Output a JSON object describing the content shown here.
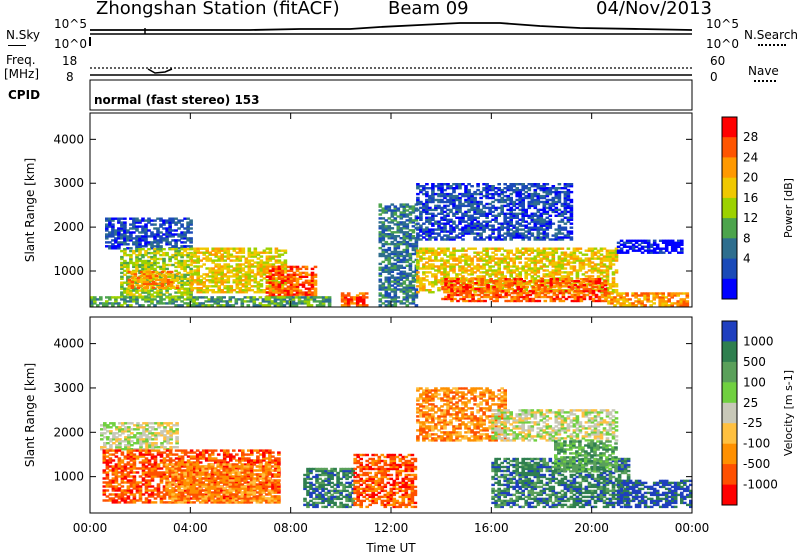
{
  "header": {
    "station": "Zhongshan Station (fitACF)",
    "beam": "Beam 09",
    "date": "04/Nov/2013"
  },
  "top_panels": {
    "nsky_label": "N.Sky",
    "nsky_ticks": [
      "10^5",
      "10^0"
    ],
    "nsearch_label": "N.Search",
    "nsearch_ticks": [
      "10^5",
      "10^0"
    ],
    "freq_label": "Freq.",
    "freq_unit": "[MHz]",
    "freq_ticks": [
      "18",
      "8"
    ],
    "nave_label": "Nave",
    "nave_ticks": [
      "60",
      "0"
    ],
    "cpid_label": "CPID",
    "cpid_text": "normal (fast stereo) 153"
  },
  "chart_data": [
    {
      "type": "heatmap",
      "title": "",
      "xlabel": "",
      "ylabel": "Slant Range [km]",
      "x_ticks": [
        "00:00",
        "04:00",
        "08:00",
        "12:00",
        "16:00",
        "20:00",
        "00:00"
      ],
      "y_ticks": [
        1000,
        2000,
        3000,
        4000
      ],
      "ylim": [
        180,
        4600
      ],
      "colorbar": {
        "label": "Power [dB]",
        "ticks": [
          "28",
          "24",
          "20",
          "16",
          "12",
          "8",
          "4"
        ],
        "colors": [
          "#ff0000",
          "#ff5500",
          "#ff9900",
          "#f0c800",
          "#9cd200",
          "#4ca44c",
          "#2e6e8e",
          "#1a4ab8",
          "#0000ff"
        ]
      },
      "regions": [
        {
          "t": [
            0.6,
            4.0
          ],
          "r": [
            1500,
            2200
          ],
          "level": 1
        },
        {
          "t": [
            1.2,
            4.0
          ],
          "r": [
            400,
            1500
          ],
          "level": 4
        },
        {
          "t": [
            1.5,
            3.5
          ],
          "r": [
            600,
            1000
          ],
          "level": 6
        },
        {
          "t": [
            4.0,
            7.8
          ],
          "r": [
            500,
            1500
          ],
          "level": 5
        },
        {
          "t": [
            7.0,
            9.0
          ],
          "r": [
            400,
            1100
          ],
          "level": 7
        },
        {
          "t": [
            0.0,
            9.5
          ],
          "r": [
            200,
            400
          ],
          "level": 3
        },
        {
          "t": [
            10.0,
            11.0
          ],
          "r": [
            200,
            500
          ],
          "level": 7
        },
        {
          "t": [
            11.5,
            13.0
          ],
          "r": [
            200,
            2500
          ],
          "level": 2
        },
        {
          "t": [
            13.0,
            19.2
          ],
          "r": [
            1700,
            3000
          ],
          "level": 1
        },
        {
          "t": [
            13.0,
            21.0
          ],
          "r": [
            500,
            1500
          ],
          "level": 5
        },
        {
          "t": [
            14.0,
            20.5
          ],
          "r": [
            300,
            800
          ],
          "level": 7
        },
        {
          "t": [
            20.5,
            23.8
          ],
          "r": [
            200,
            500
          ],
          "level": 6
        },
        {
          "t": [
            21.0,
            23.6
          ],
          "r": [
            1400,
            1700
          ],
          "level": 0
        }
      ]
    },
    {
      "type": "heatmap",
      "title": "",
      "xlabel": "Time UT",
      "ylabel": "Slant Range [km]",
      "x_ticks": [
        "00:00",
        "04:00",
        "08:00",
        "12:00",
        "16:00",
        "20:00",
        "00:00"
      ],
      "y_ticks": [
        1000,
        2000,
        3000,
        4000
      ],
      "ylim": [
        180,
        4600
      ],
      "colorbar": {
        "label": "Velocity [m s-1]",
        "ticks": [
          "1000",
          "500",
          "100",
          "25",
          "-25",
          "-100",
          "-500",
          "-1000"
        ],
        "colors": [
          "#1f3fbf",
          "#2f7f4f",
          "#5aa05a",
          "#70d040",
          "#c8c8b8",
          "#ffc040",
          "#ff9000",
          "#ff5000",
          "#ff0000"
        ]
      },
      "regions": [
        {
          "t": [
            0.4,
            3.5
          ],
          "r": [
            1600,
            2200
          ],
          "level": 4
        },
        {
          "t": [
            0.5,
            7.5
          ],
          "r": [
            400,
            1600
          ],
          "level": 7
        },
        {
          "t": [
            3.0,
            7.5
          ],
          "r": [
            400,
            1300
          ],
          "level": 6
        },
        {
          "t": [
            8.5,
            10.5
          ],
          "r": [
            300,
            1200
          ],
          "level": 1
        },
        {
          "t": [
            10.5,
            13.0
          ],
          "r": [
            300,
            1500
          ],
          "level": 7
        },
        {
          "t": [
            13.0,
            16.5
          ],
          "r": [
            1800,
            3000
          ],
          "level": 6
        },
        {
          "t": [
            16.0,
            21.0
          ],
          "r": [
            1800,
            2500
          ],
          "level": 4
        },
        {
          "t": [
            16.0,
            21.5
          ],
          "r": [
            300,
            1400
          ],
          "level": 1
        },
        {
          "t": [
            21.0,
            23.9
          ],
          "r": [
            300,
            900
          ],
          "level": 0
        },
        {
          "t": [
            18.5,
            21.0
          ],
          "r": [
            1100,
            1800
          ],
          "level": 2
        }
      ]
    }
  ]
}
